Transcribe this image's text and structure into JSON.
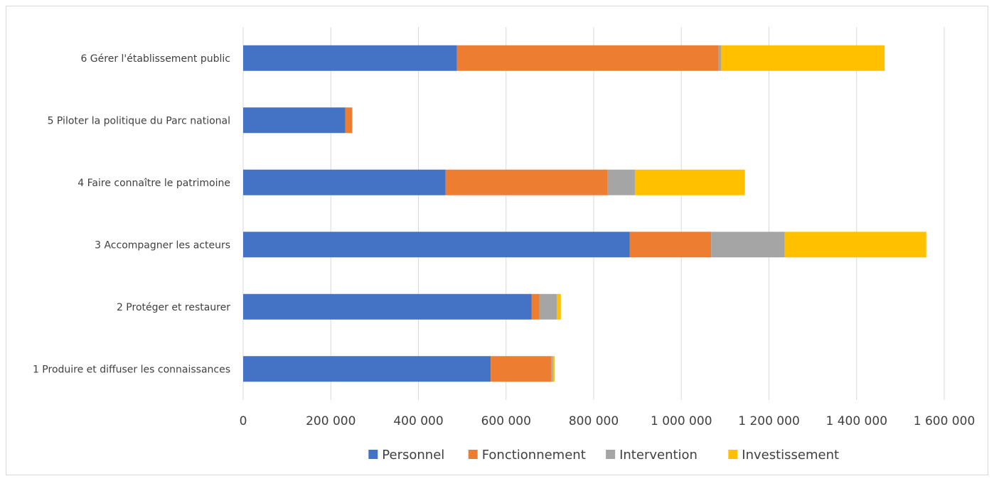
{
  "chart_data": {
    "type": "bar",
    "orientation": "horizontal",
    "stacked": true,
    "categories": [
      "1 Produire et diffuser les connaissances",
      "2 Protéger et restaurer",
      "3 Accompagner les acteurs",
      "4 Faire connaître le patrimoine",
      "5 Piloter la politique du Parc national",
      "6 Gérer l'établissement public"
    ],
    "series": [
      {
        "name": "Personnel",
        "color": "#4472C4",
        "values": [
          565000,
          658000,
          882000,
          462000,
          233000,
          488000
        ]
      },
      {
        "name": "Fonctionnement",
        "color": "#ED7D31",
        "values": [
          138000,
          18000,
          186000,
          370000,
          16000,
          597000
        ]
      },
      {
        "name": "Intervention",
        "color": "#A5A5A5",
        "values": [
          4000,
          40000,
          168000,
          62000,
          0,
          6000
        ]
      },
      {
        "name": "Investissement",
        "color": "#FFC000",
        "values": [
          4000,
          9000,
          323000,
          251000,
          0,
          373000
        ]
      }
    ],
    "xlim": [
      0,
      1600000
    ],
    "xticks": [
      "0",
      "200 000",
      "400 000",
      "600 000",
      "800 000",
      "1 000 000",
      "1 200 000",
      "1 400 000",
      "1 600 000"
    ],
    "grid": "vertical",
    "legend_position": "bottom",
    "title": "",
    "xlabel": "",
    "ylabel": ""
  }
}
